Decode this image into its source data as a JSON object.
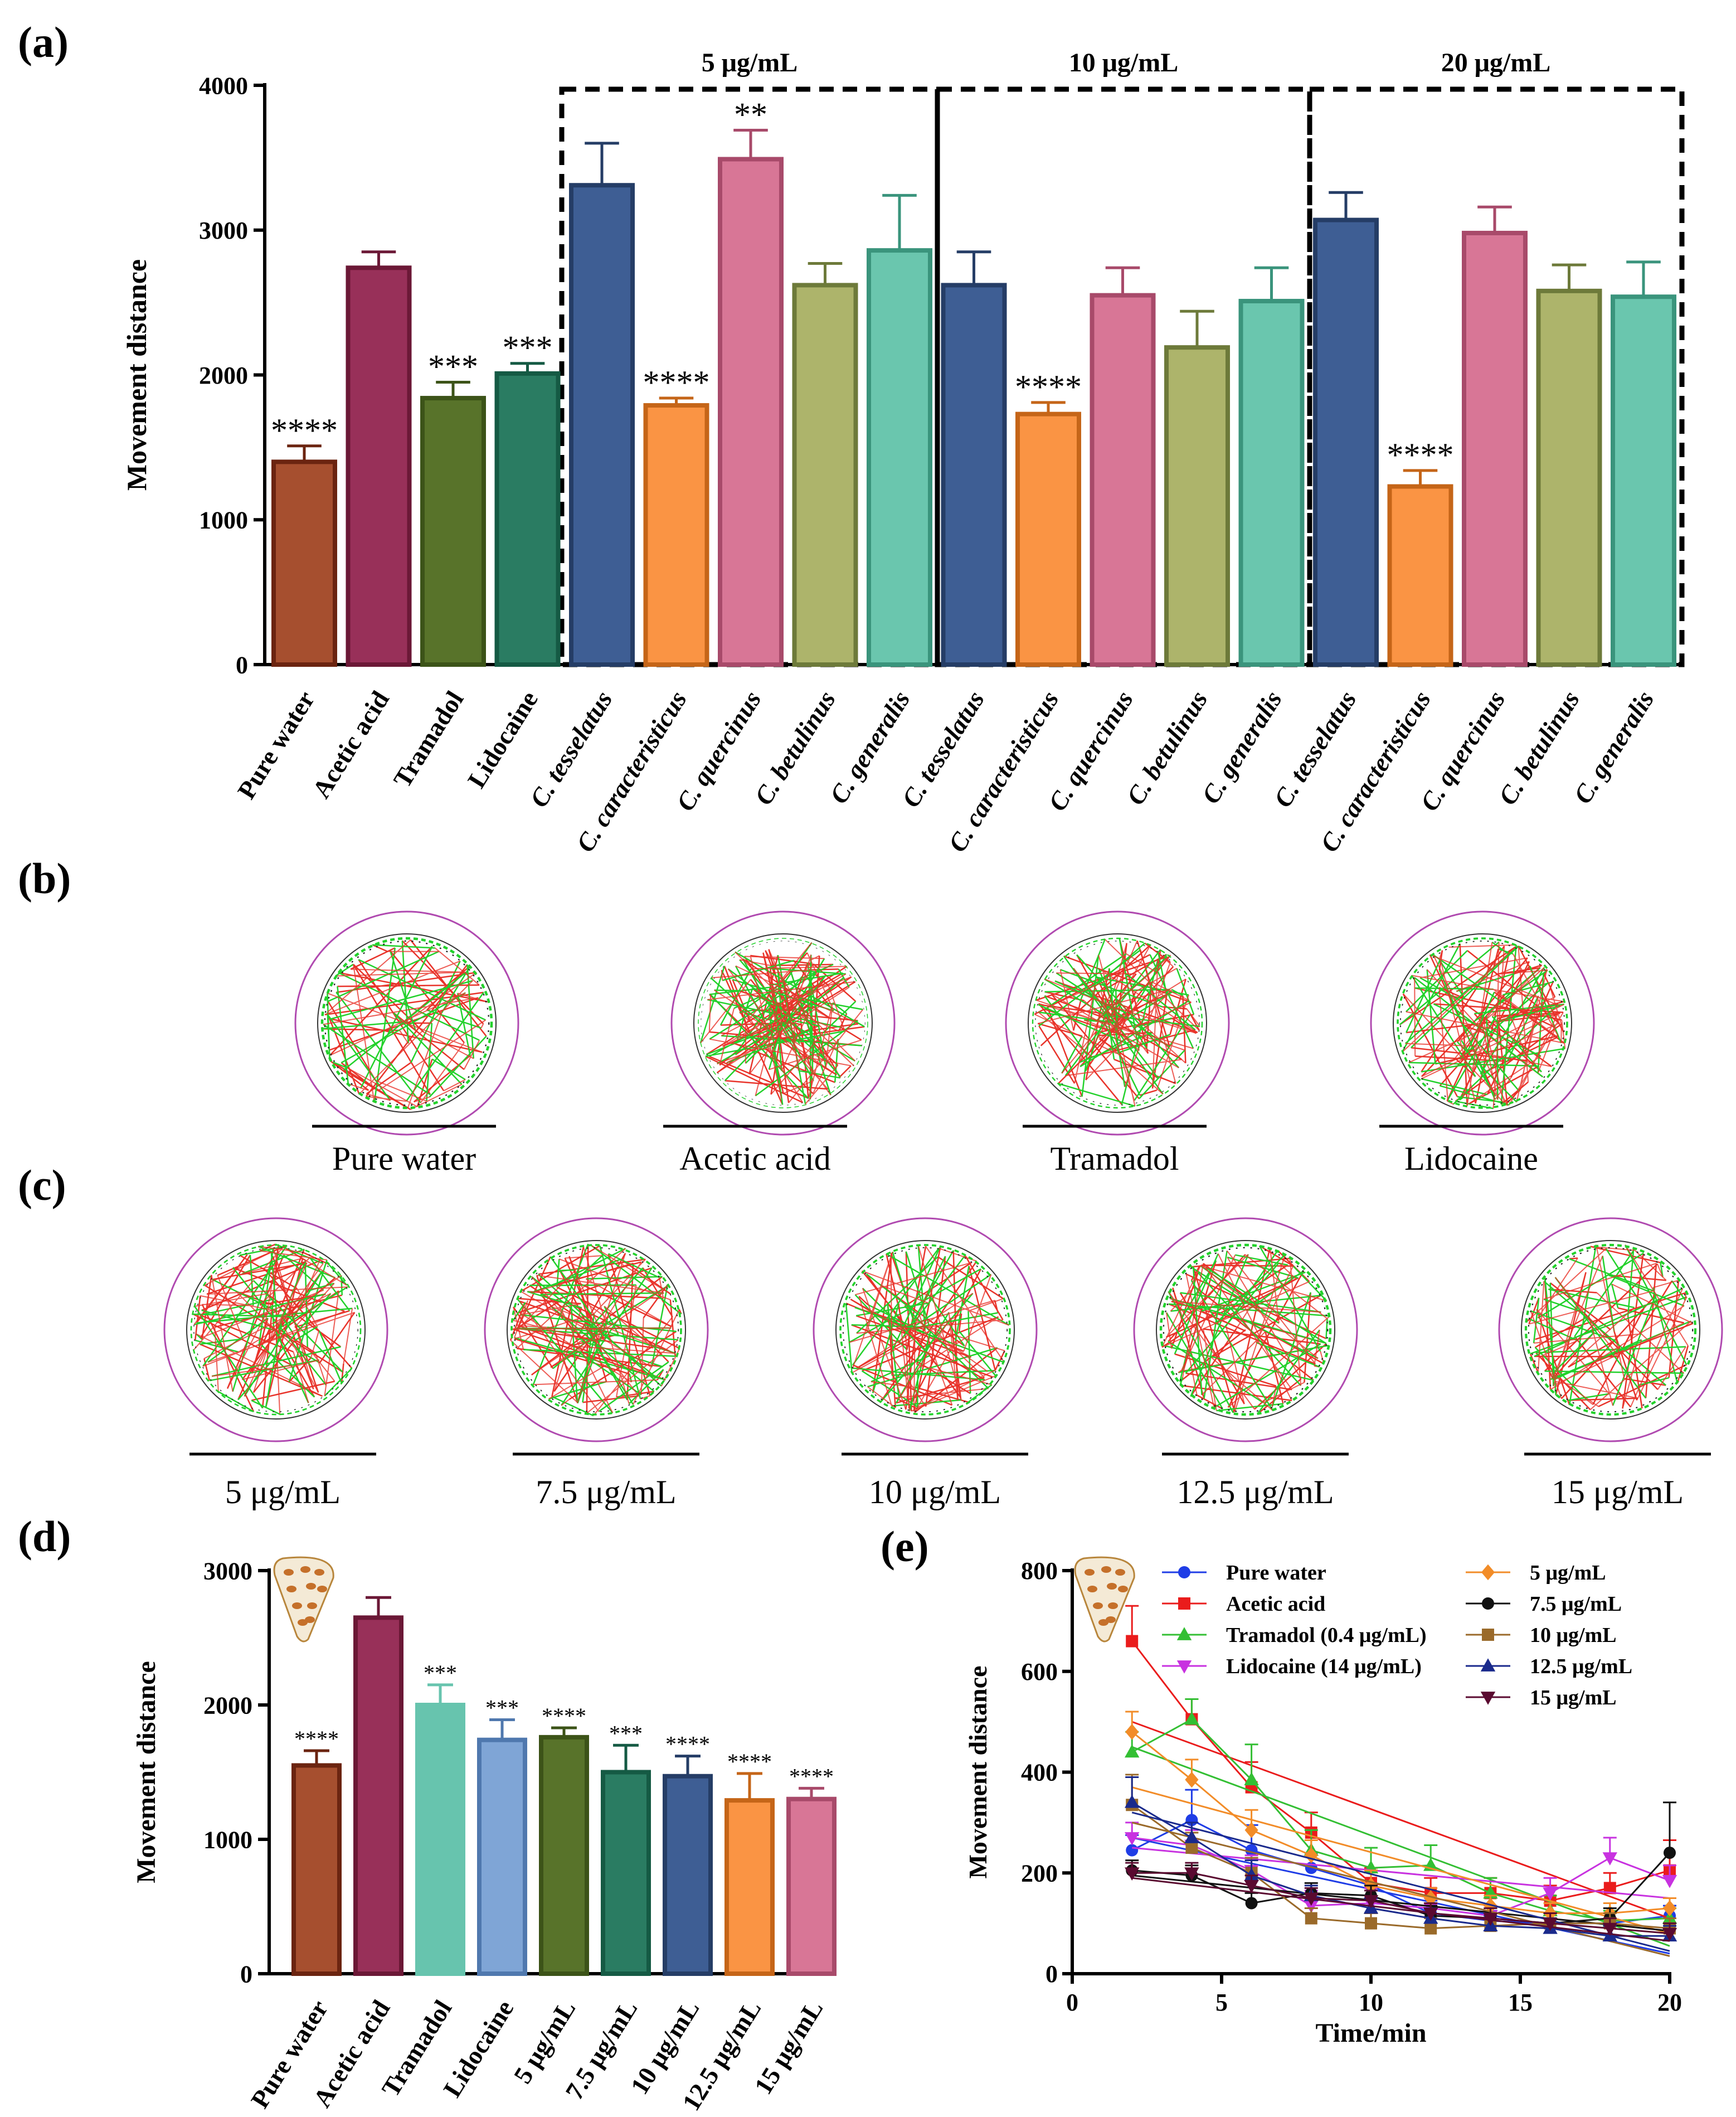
{
  "panel_labels": [
    "(a)",
    "(b)",
    "(c)",
    "(d)",
    "(e)"
  ],
  "colors": {
    "brown": "#a64f2f",
    "brown_edge": "#6b2410",
    "maroon": "#983059",
    "maroon_edge": "#6b1836",
    "olive": "#58732a",
    "olive_edge": "#3c5318",
    "teal": "#2a7c62",
    "teal_edge": "#155a44",
    "blue": "#3e5e94",
    "blue_edge": "#253d66",
    "orange": "#fa9444",
    "orange_edge": "#c56518",
    "pink": "#d87696",
    "pink_edge": "#a84a6a",
    "khaki": "#adb46b",
    "khaki_edge": "#6d7a3a",
    "mint": "#6ac6ae",
    "mint_edge": "#3a947c",
    "light_blue": "#7fa5d6",
    "light_blue_edge": "#4f78ae",
    "mint_light": "#67c4ae",
    "circle": "#b04ab0"
  },
  "chart_data": [
    {
      "id": "a",
      "type": "bar",
      "ylabel": "Movement distance",
      "ylim": [
        0,
        4000
      ],
      "yticks": [
        "0",
        "1000",
        "2000",
        "3000",
        "4000"
      ],
      "group_labels": [
        "5 μg/mL",
        "10 μg/mL",
        "20 μg/mL"
      ],
      "categories": [
        "Pure water",
        "Acetic acid",
        "Tramadol",
        "Lidocaine",
        "C. tesselatus",
        "C. caracteristicus",
        "C. quercinus",
        "C. betulinus",
        "C. generalis",
        "C. tesselatus",
        "C. caracteristicus",
        "C. quercinus",
        "C. betulinus",
        "C. generalis",
        "C. tesselatus",
        "C. caracteristicus",
        "C. quercinus",
        "C. betulinus",
        "C. generalis"
      ],
      "values": [
        1400,
        2740,
        1840,
        2010,
        3310,
        1790,
        3490,
        2620,
        2860,
        2620,
        1730,
        2550,
        2190,
        2510,
        3070,
        1230,
        2980,
        2580,
        2540
      ],
      "errors": [
        110,
        110,
        110,
        70,
        290,
        50,
        200,
        150,
        380,
        230,
        80,
        190,
        250,
        230,
        190,
        110,
        180,
        180,
        240
      ],
      "significance": [
        "****",
        "",
        "***",
        "***",
        "",
        "****",
        "**",
        "",
        "",
        "",
        "****",
        "",
        "",
        "",
        "",
        "****",
        "",
        "",
        ""
      ],
      "bar_colors": [
        "brown",
        "maroon",
        "olive",
        "teal",
        "blue",
        "orange",
        "pink",
        "khaki",
        "mint",
        "blue",
        "orange",
        "pink",
        "khaki",
        "mint",
        "blue",
        "orange",
        "pink",
        "khaki",
        "mint"
      ]
    },
    {
      "id": "d",
      "type": "bar",
      "ylabel": "Movement distance",
      "ylim": [
        0,
        3000
      ],
      "yticks": [
        "0",
        "1000",
        "2000",
        "3000"
      ],
      "categories": [
        "Pure water",
        "Acetic acid",
        "Tramadol",
        "Lidocaine",
        "5 μg/mL",
        "7.5 μg/mL",
        "10 μg/mL",
        "12.5 μg/mL",
        "15 μg/mL"
      ],
      "values": [
        1550,
        2650,
        2000,
        1740,
        1760,
        1500,
        1470,
        1290,
        1300
      ],
      "errors": [
        110,
        150,
        150,
        150,
        70,
        200,
        150,
        200,
        80
      ],
      "significance": [
        "****",
        "",
        "***",
        "***",
        "****",
        "***",
        "****",
        "****",
        "****"
      ],
      "bar_colors": [
        "brown",
        "maroon",
        "mint_light",
        "light_blue",
        "olive",
        "teal",
        "blue",
        "orange",
        "pink"
      ]
    },
    {
      "id": "e",
      "type": "line",
      "xlabel": "Time/min",
      "ylabel": "Movement distance",
      "xlim": [
        0,
        20
      ],
      "ylim": [
        0,
        800
      ],
      "xticks": [
        "0",
        "5",
        "10",
        "15",
        "20"
      ],
      "yticks": [
        "0",
        "200",
        "400",
        "600",
        "800"
      ],
      "x": [
        2,
        4,
        6,
        8,
        10,
        12,
        14,
        16,
        18,
        20
      ],
      "series": [
        {
          "name": "Pure water",
          "color": "#1f3de6",
          "marker": "circle",
          "values": [
            245,
            305,
            245,
            210,
            175,
            120,
            105,
            100,
            100,
            115
          ],
          "errors": [
            30,
            60,
            50,
            30,
            30,
            25,
            20,
            20,
            20,
            20
          ],
          "trend": [
            270,
            40
          ]
        },
        {
          "name": "Acetic acid",
          "color": "#ea1c1c",
          "marker": "square",
          "values": [
            660,
            505,
            370,
            280,
            180,
            160,
            160,
            145,
            170,
            205
          ],
          "errors": [
            70,
            40,
            50,
            40,
            30,
            30,
            30,
            30,
            30,
            60
          ],
          "trend": [
            500,
            110
          ]
        },
        {
          "name": "Tramadol (0.4 μg/mL)",
          "color": "#33bf33",
          "marker": "triangle-up",
          "values": [
            440,
            505,
            385,
            245,
            210,
            215,
            160,
            125,
            105,
            110
          ],
          "errors": [
            40,
            40,
            70,
            40,
            40,
            40,
            30,
            30,
            20,
            20
          ],
          "trend": [
            450,
            55
          ]
        },
        {
          "name": "Lidocaine (14 μg/mL)",
          "color": "#c832e0",
          "marker": "triangle-down",
          "values": [
            270,
            255,
            205,
            135,
            140,
            130,
            115,
            160,
            230,
            185
          ],
          "errors": [
            30,
            30,
            30,
            30,
            30,
            20,
            20,
            30,
            40,
            30
          ],
          "trend": [
            250,
            150
          ]
        },
        {
          "name": "5 μg/mL",
          "color": "#f28c28",
          "marker": "diamond",
          "values": [
            480,
            385,
            285,
            235,
            175,
            150,
            135,
            120,
            120,
            130
          ],
          "errors": [
            40,
            40,
            40,
            30,
            30,
            20,
            20,
            20,
            20,
            20
          ],
          "trend": [
            370,
            80
          ]
        },
        {
          "name": "7.5 μg/mL",
          "color": "#111111",
          "marker": "circle",
          "values": [
            205,
            195,
            140,
            160,
            155,
            115,
            110,
            100,
            110,
            240
          ],
          "errors": [
            20,
            20,
            20,
            20,
            20,
            20,
            20,
            20,
            20,
            100
          ],
          "trend": [
            195,
            85
          ]
        },
        {
          "name": "10 μg/mL",
          "color": "#9a6a2a",
          "marker": "square",
          "values": [
            335,
            250,
            200,
            110,
            100,
            90,
            95,
            100,
            100,
            90
          ],
          "errors": [
            60,
            30,
            30,
            20,
            20,
            20,
            20,
            20,
            20,
            20
          ],
          "trend": [
            300,
            35
          ]
        },
        {
          "name": "12.5 μg/mL",
          "color": "#1a2a8c",
          "marker": "triangle-up",
          "values": [
            340,
            270,
            195,
            155,
            130,
            110,
            95,
            90,
            75,
            75
          ],
          "errors": [
            50,
            30,
            30,
            20,
            20,
            20,
            20,
            20,
            20,
            20
          ],
          "trend": [
            320,
            45
          ]
        },
        {
          "name": "15 μg/mL",
          "color": "#5a0a30",
          "marker": "triangle-down",
          "values": [
            200,
            200,
            175,
            150,
            145,
            120,
            110,
            100,
            90,
            80
          ],
          "errors": [
            20,
            20,
            20,
            20,
            20,
            20,
            20,
            20,
            20,
            20
          ],
          "trend": [
            190,
            65
          ]
        }
      ]
    }
  ],
  "panel_b": {
    "labels": [
      "Pure water",
      "Acetic acid",
      "Tramadol",
      "Lidocaine"
    ],
    "density": [
      0.35,
      1.0,
      0.75,
      0.7
    ],
    "ring_bias": [
      0.75,
      0.25,
      0.4,
      0.6
    ]
  },
  "panel_c": {
    "labels": [
      "5 μg/mL",
      "7.5 μg/mL",
      "10 μg/mL",
      "12.5 μg/mL",
      "15 μg/mL"
    ],
    "density": [
      0.7,
      0.7,
      0.55,
      0.5,
      0.45
    ],
    "ring_bias": [
      0.45,
      0.6,
      0.6,
      0.75,
      0.7
    ]
  }
}
